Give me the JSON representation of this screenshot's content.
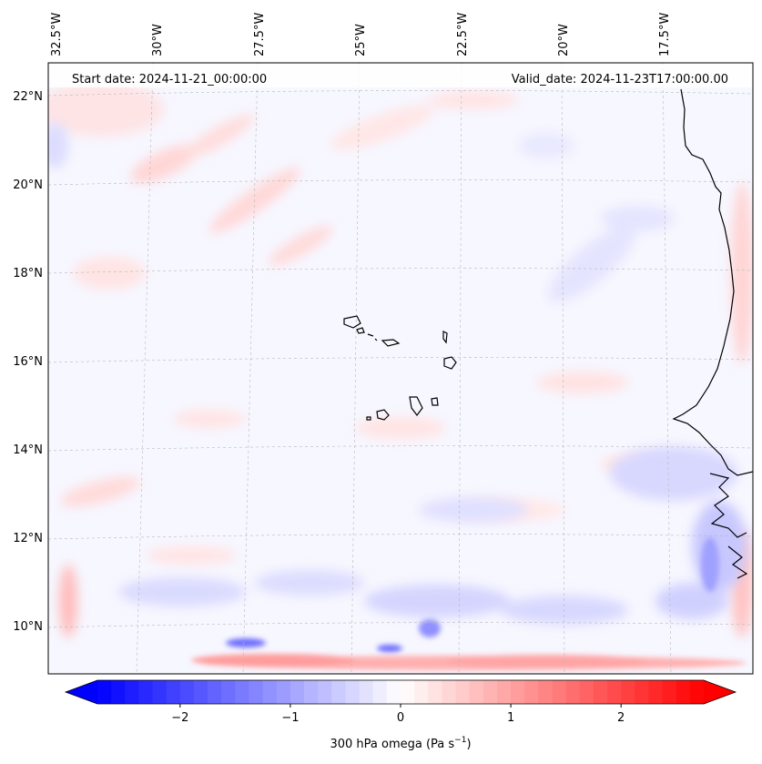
{
  "header": {
    "start_date": "Start date: 2024-11-21_00:00:00",
    "valid_date": "Valid_date: 2024-11-23T17:00:00.00"
  },
  "map": {
    "lon_labels": [
      "32.5°W",
      "30°W",
      "27.5°W",
      "25°W",
      "22.5°W",
      "20°W",
      "17.5°W"
    ],
    "lat_labels": [
      "22°N",
      "20°N",
      "18°N",
      "16°N",
      "14°N",
      "12°N",
      "10°N"
    ],
    "colors": {
      "background": "#f7f7ff",
      "positive": "#ff0000",
      "negative": "#0000ff",
      "coastline": "#000000",
      "gridline": "#b0b0b0"
    }
  },
  "colorbar": {
    "title_prefix": "300 hPa omega (Pa s",
    "title_sup": "−1",
    "title_suffix": ")",
    "min": -2.75,
    "max": 2.75,
    "ticks": [
      {
        "value": -2,
        "label": "−2"
      },
      {
        "value": -1,
        "label": "−1"
      },
      {
        "value": 0,
        "label": "0"
      },
      {
        "value": 1,
        "label": "1"
      },
      {
        "value": 2,
        "label": "2"
      }
    ]
  }
}
